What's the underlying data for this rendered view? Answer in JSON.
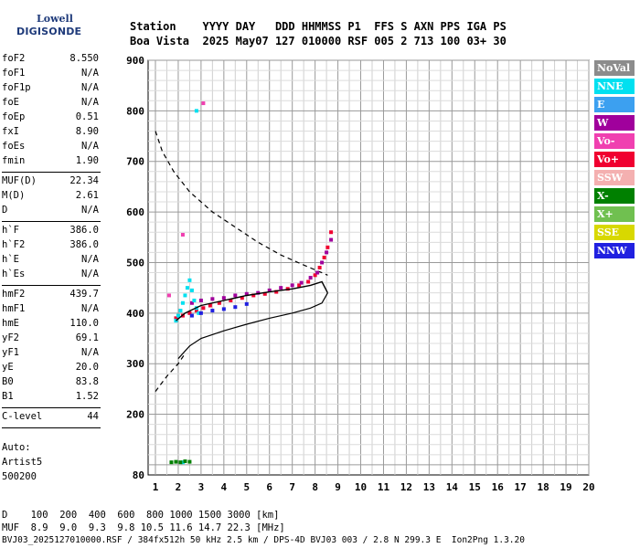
{
  "logo": {
    "line1": "Lowell",
    "line2": "DIGISONDE"
  },
  "header": {
    "line1": "Station    YYYY DAY   DDD HHMMSS P1  FFS S AXN PPS IGA PS",
    "line2": "Boa Vista  2025 May07 127 010000 RSF 005 2 713 100 03+ 30"
  },
  "params": [
    {
      "k": "foF2",
      "v": "8.550"
    },
    {
      "k": "foF1",
      "v": "N/A"
    },
    {
      "k": "foF1p",
      "v": "N/A"
    },
    {
      "k": "foE",
      "v": "N/A"
    },
    {
      "k": "foEp",
      "v": "0.51"
    },
    {
      "k": "fxI",
      "v": "8.90"
    },
    {
      "k": "foEs",
      "v": "N/A"
    },
    {
      "k": "fmin",
      "v": "1.90"
    },
    {
      "k": "MUF(D)",
      "v": "22.34"
    },
    {
      "k": "M(D)",
      "v": "2.61"
    },
    {
      "k": "D",
      "v": "N/A"
    },
    {
      "k": "h`F",
      "v": "386.0"
    },
    {
      "k": "h`F2",
      "v": "386.0"
    },
    {
      "k": "h`E",
      "v": "N/A"
    },
    {
      "k": "h`Es",
      "v": "N/A"
    },
    {
      "k": "hmF2",
      "v": "439.7"
    },
    {
      "k": "hmF1",
      "v": "N/A"
    },
    {
      "k": "hmE",
      "v": "110.0"
    },
    {
      "k": "yF2",
      "v": "69.1"
    },
    {
      "k": "yF1",
      "v": "N/A"
    },
    {
      "k": "yE",
      "v": "20.0"
    },
    {
      "k": "B0",
      "v": "83.8"
    },
    {
      "k": "B1",
      "v": "1.52"
    },
    {
      "k": "C-level",
      "v": "44"
    }
  ],
  "auto": {
    "line1": "Auto:",
    "line2": "Artist5",
    "line3": "500200"
  },
  "footer": {
    "d_line": "D    100  200  400  600  800 1000 1500 3000 [km]",
    "muf_line": "MUF  8.9  9.0  9.3  9.8 10.5 11.6 14.7 22.3 [MHz]",
    "file_line": "BVJ03_2025127010000.RSF / 384fx512h 50 kHz 2.5 km / DPS-4D BVJ03 003 / 2.8 N 299.3 E  Ion2Png 1.3.20"
  },
  "legend": [
    {
      "label": "NoVal",
      "color": "#8c8c8c"
    },
    {
      "label": "NNE",
      "color": "#00e0f0"
    },
    {
      "label": "E",
      "color": "#3ca0f0"
    },
    {
      "label": "W",
      "color": "#a0009c"
    },
    {
      "label": "Vo-",
      "color": "#f040b0"
    },
    {
      "label": "Vo+",
      "color": "#f00030"
    },
    {
      "label": "SSW",
      "color": "#f4b0b0"
    },
    {
      "label": "X-",
      "color": "#008000"
    },
    {
      "label": "X+",
      "color": "#70c050"
    },
    {
      "label": "SSE",
      "color": "#d8d800"
    },
    {
      "label": "NNW",
      "color": "#2020e0"
    }
  ],
  "chart_data": {
    "type": "scatter",
    "xlim": [
      1,
      20
    ],
    "ylim": [
      80,
      900
    ],
    "x_ticks": [
      "1",
      "2",
      "3",
      "4",
      "5",
      "6",
      "7",
      "8",
      "9",
      "10",
      "11",
      "12",
      "13",
      "14",
      "15",
      "16",
      "17",
      "18",
      "19",
      "20"
    ],
    "y_ticks": [
      80,
      200,
      300,
      400,
      500,
      600,
      700,
      800,
      900
    ],
    "grid": true,
    "series": [
      {
        "name": "Vo+",
        "color": "#f00030",
        "points": [
          [
            1.9,
            390
          ],
          [
            2.2,
            395
          ],
          [
            2.5,
            400
          ],
          [
            2.8,
            405
          ],
          [
            3.1,
            410
          ],
          [
            3.4,
            415
          ],
          [
            3.8,
            420
          ],
          [
            4.3,
            425
          ],
          [
            4.8,
            430
          ],
          [
            5.3,
            435
          ],
          [
            5.8,
            438
          ],
          [
            6.3,
            442
          ],
          [
            6.8,
            448
          ],
          [
            7.3,
            455
          ],
          [
            7.7,
            462
          ],
          [
            8.0,
            475
          ],
          [
            8.2,
            490
          ],
          [
            8.4,
            510
          ],
          [
            8.55,
            530
          ],
          [
            8.7,
            560
          ]
        ]
      },
      {
        "name": "W",
        "color": "#a0009c",
        "points": [
          [
            2.6,
            420
          ],
          [
            3.0,
            425
          ],
          [
            3.5,
            428
          ],
          [
            4.0,
            430
          ],
          [
            4.5,
            435
          ],
          [
            5.0,
            438
          ],
          [
            5.5,
            440
          ],
          [
            6.0,
            445
          ],
          [
            6.5,
            450
          ],
          [
            7.0,
            455
          ],
          [
            7.4,
            460
          ],
          [
            7.8,
            470
          ],
          [
            8.1,
            480
          ],
          [
            8.3,
            500
          ],
          [
            8.5,
            520
          ],
          [
            8.7,
            545
          ]
        ]
      },
      {
        "name": "NNE",
        "color": "#00e0f0",
        "points": [
          [
            1.9,
            385
          ],
          [
            2.0,
            395
          ],
          [
            2.1,
            405
          ],
          [
            2.2,
            420
          ],
          [
            2.3,
            435
          ],
          [
            2.4,
            450
          ],
          [
            2.5,
            465
          ],
          [
            2.6,
            445
          ],
          [
            2.7,
            425
          ],
          [
            2.8,
            410
          ],
          [
            2.9,
            400
          ],
          [
            2.8,
            800
          ],
          [
            2.2,
            105
          ]
        ]
      },
      {
        "name": "NNW",
        "color": "#2020e0",
        "points": [
          [
            2.6,
            395
          ],
          [
            3.0,
            400
          ],
          [
            3.5,
            405
          ],
          [
            4.0,
            408
          ],
          [
            4.5,
            412
          ],
          [
            5.0,
            418
          ]
        ]
      },
      {
        "name": "X-",
        "color": "#008000",
        "points": [
          [
            1.7,
            105
          ],
          [
            1.9,
            106
          ],
          [
            2.1,
            105
          ],
          [
            2.3,
            107
          ],
          [
            2.5,
            106
          ]
        ]
      },
      {
        "name": "Vo-",
        "color": "#f040b0",
        "points": [
          [
            3.1,
            815
          ],
          [
            2.2,
            555
          ],
          [
            1.6,
            435
          ]
        ]
      }
    ],
    "profile_curve": [
      [
        1.9,
        385
      ],
      [
        2.3,
        400
      ],
      [
        3.0,
        415
      ],
      [
        4.0,
        425
      ],
      [
        5.0,
        435
      ],
      [
        6.0,
        442
      ],
      [
        7.0,
        448
      ],
      [
        7.8,
        455
      ],
      [
        8.3,
        462
      ],
      [
        8.55,
        440
      ]
    ],
    "lower_curve": [
      [
        2.0,
        310
      ],
      [
        2.5,
        335
      ],
      [
        3.0,
        350
      ],
      [
        4.0,
        365
      ],
      [
        5.0,
        378
      ],
      [
        6.0,
        390
      ],
      [
        7.0,
        400
      ],
      [
        7.8,
        410
      ],
      [
        8.3,
        420
      ],
      [
        8.55,
        440
      ]
    ],
    "dashed_upper": [
      [
        1.0,
        760
      ],
      [
        1.3,
        720
      ],
      [
        1.8,
        680
      ],
      [
        2.5,
        640
      ],
      [
        3.5,
        600
      ],
      [
        4.5,
        570
      ],
      [
        5.5,
        540
      ],
      [
        6.5,
        515
      ],
      [
        7.5,
        495
      ],
      [
        8.55,
        475
      ]
    ],
    "dashed_lower": [
      [
        1.0,
        245
      ],
      [
        1.5,
        275
      ],
      [
        2.0,
        300
      ],
      [
        2.3,
        320
      ]
    ]
  }
}
